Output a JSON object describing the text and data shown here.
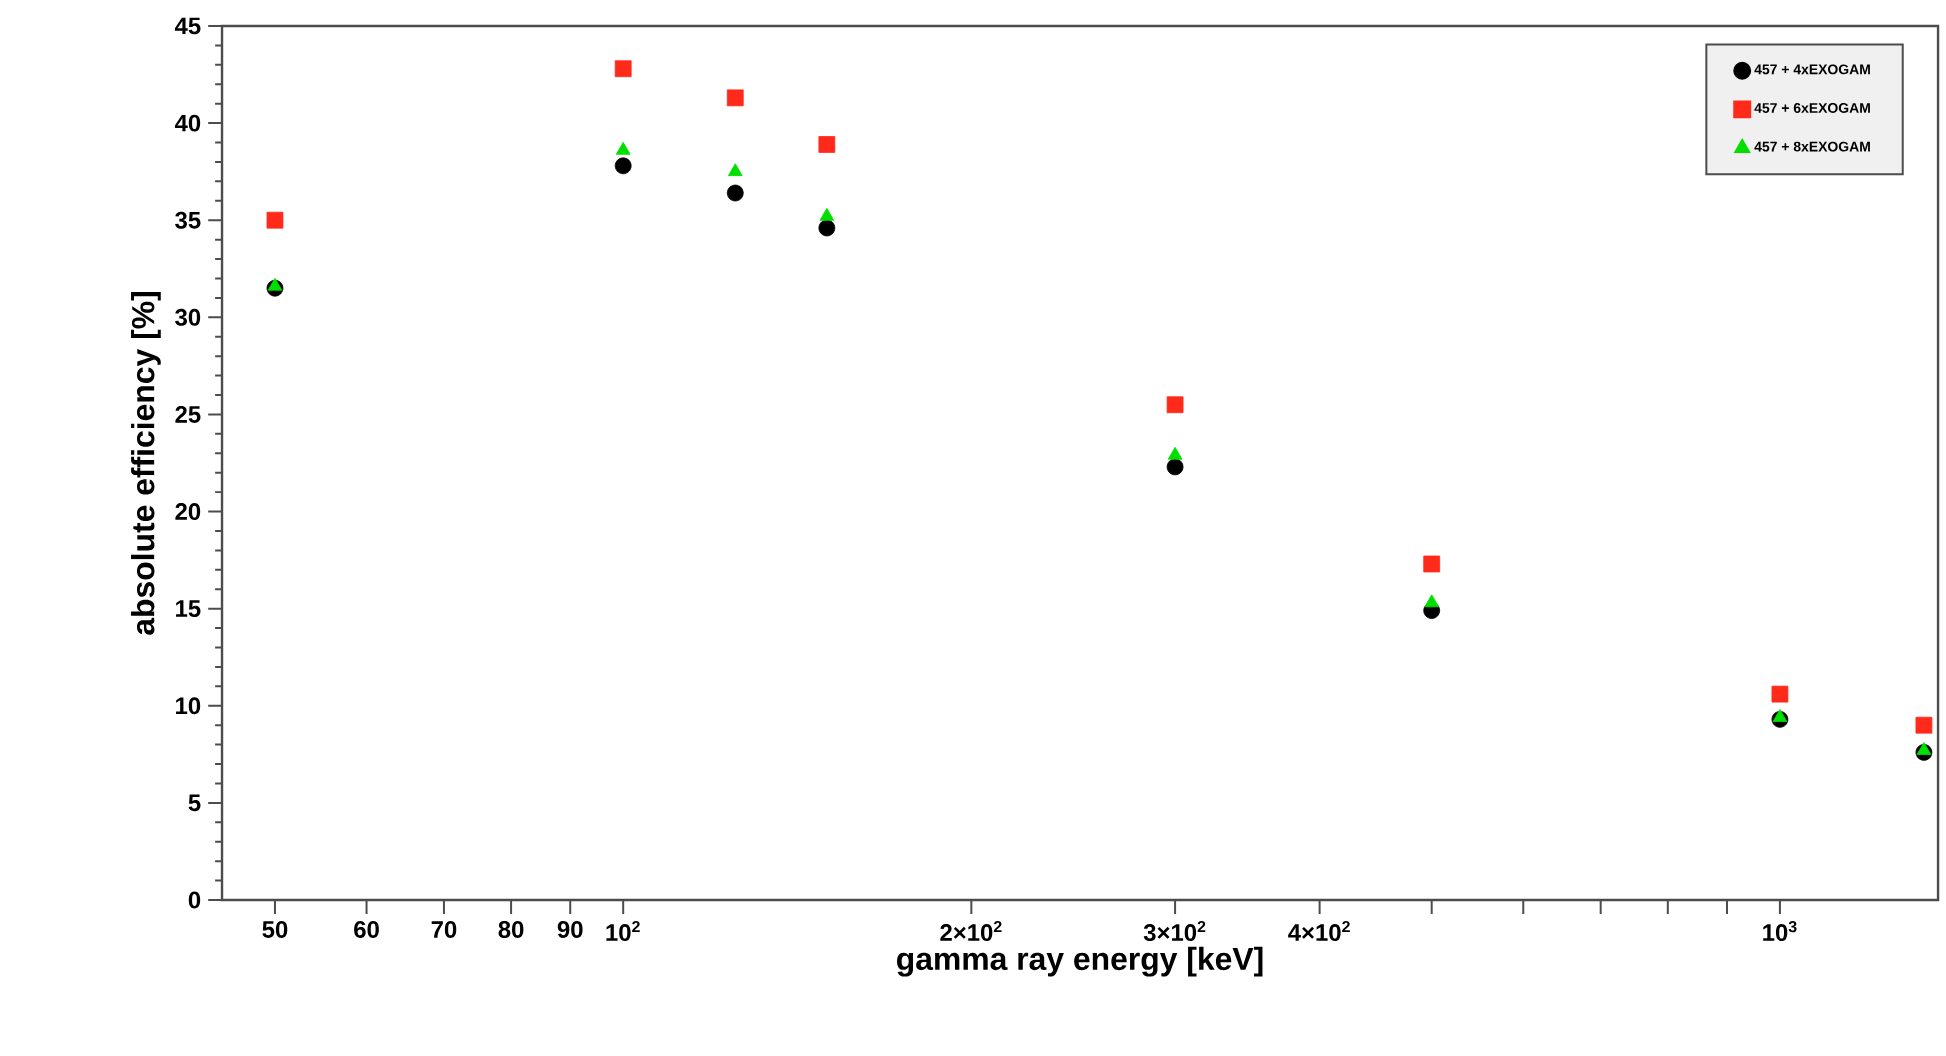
{
  "chart_data": {
    "type": "scatter",
    "xlabel": "gamma ray energy [keV]",
    "ylabel": "absolute efficiency [%]",
    "log": "x",
    "x": [
      50,
      100,
      125,
      150,
      300,
      500,
      1000,
      1332
    ],
    "series": [
      {
        "name": "457 + 4xEXOGAM",
        "color": "#000000",
        "marker": "circle",
        "values": [
          31.5,
          37.8,
          36.4,
          34.6,
          22.3,
          14.9,
          9.3,
          7.6
        ]
      },
      {
        "name": "457 + 6xEXOGAM",
        "color": "#ff2a1a",
        "marker": "square",
        "values": [
          35.0,
          42.8,
          41.3,
          38.9,
          25.5,
          17.3,
          10.6,
          9.0
        ]
      },
      {
        "name": "457 + 8xEXOGAM",
        "color": "#00e000",
        "marker": "triangle",
        "values": [
          31.6,
          38.6,
          37.5,
          35.2,
          22.9,
          15.3,
          9.4,
          7.7
        ]
      }
    ],
    "xlim": [
      45,
      1370
    ],
    "ylim": [
      0,
      45
    ],
    "xticks": [
      50,
      60,
      70,
      80,
      90,
      {
        "value": 100,
        "label": "10$^{2}$"
      },
      {
        "value": 200,
        "label": "2×10$^{2}$"
      },
      {
        "value": 300,
        "label": "3×10$^{2}$"
      },
      {
        "value": 400,
        "label": "4×10$^{2}$"
      },
      {
        "value": 500,
        "label": null
      },
      {
        "value": 600,
        "label": null
      },
      {
        "value": 700,
        "label": null
      },
      {
        "value": 800,
        "label": null
      },
      {
        "value": 900,
        "label": null
      },
      {
        "value": 1000,
        "label": "10$^{3}$"
      }
    ],
    "yticks": [
      0,
      5,
      10,
      15,
      20,
      25,
      30,
      35,
      40,
      45
    ],
    "legend": "top right"
  }
}
